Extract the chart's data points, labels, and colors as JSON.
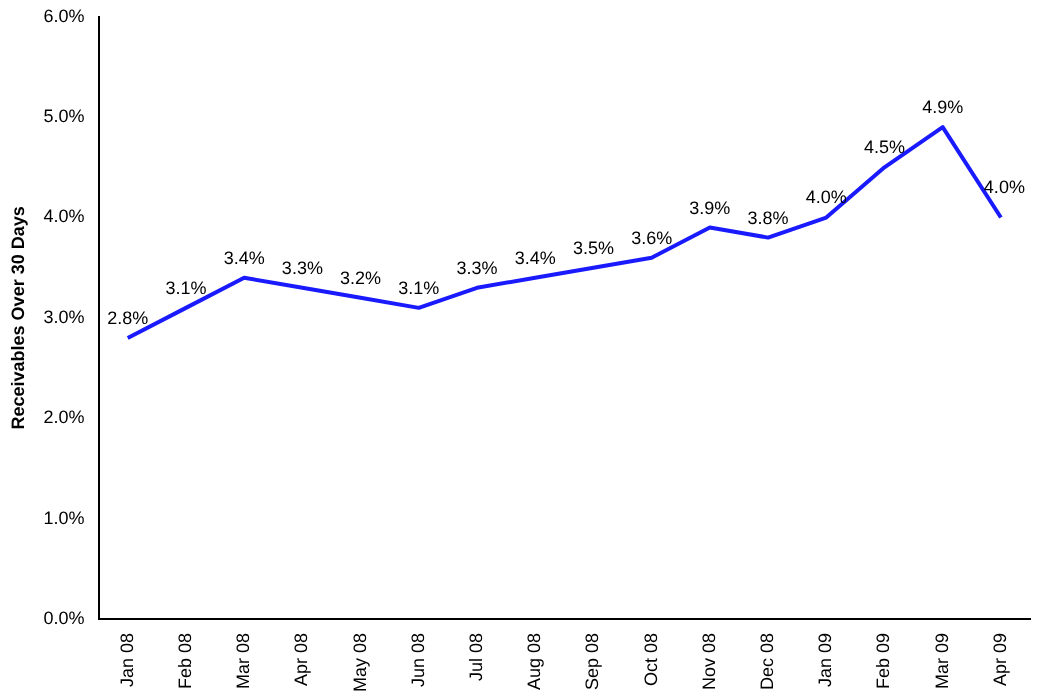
{
  "chart_data": {
    "type": "line",
    "ylabel": "Receivables Over 30 Days",
    "categories": [
      "Jan 08",
      "Feb 08",
      "Mar 08",
      "Apr 08",
      "May 08",
      "Jun 08",
      "Jul 08",
      "Aug 08",
      "Sep 08",
      "Oct 08",
      "Nov 08",
      "Dec 08",
      "Jan 09",
      "Feb 09",
      "Mar 09",
      "Apr 09"
    ],
    "series": [
      {
        "color": "#1a1aff",
        "values": [
          2.8,
          3.1,
          3.4,
          3.3,
          3.2,
          3.1,
          3.3,
          3.4,
          3.5,
          3.6,
          3.9,
          3.8,
          4.0,
          4.5,
          4.9,
          4.0
        ],
        "value_labels": [
          "2.8%",
          "3.1%",
          "3.4%",
          "3.3%",
          "3.2%",
          "3.1%",
          "3.3%",
          "3.4%",
          "3.5%",
          "3.6%",
          "3.9%",
          "3.8%",
          "4.0%",
          "4.5%",
          "4.9%",
          "4.0%"
        ]
      }
    ],
    "ylim": [
      0,
      6
    ],
    "yticks": [
      {
        "value": 0,
        "label": "0.0%"
      },
      {
        "value": 1,
        "label": "1.0%"
      },
      {
        "value": 2,
        "label": "2.0%"
      },
      {
        "value": 3,
        "label": "3.0%"
      },
      {
        "value": 4,
        "label": "4.0%"
      },
      {
        "value": 5,
        "label": "5.0%"
      },
      {
        "value": 6,
        "label": "6.0%"
      }
    ],
    "grid": false,
    "legend": false,
    "marker": "none",
    "line_style": "solid"
  }
}
